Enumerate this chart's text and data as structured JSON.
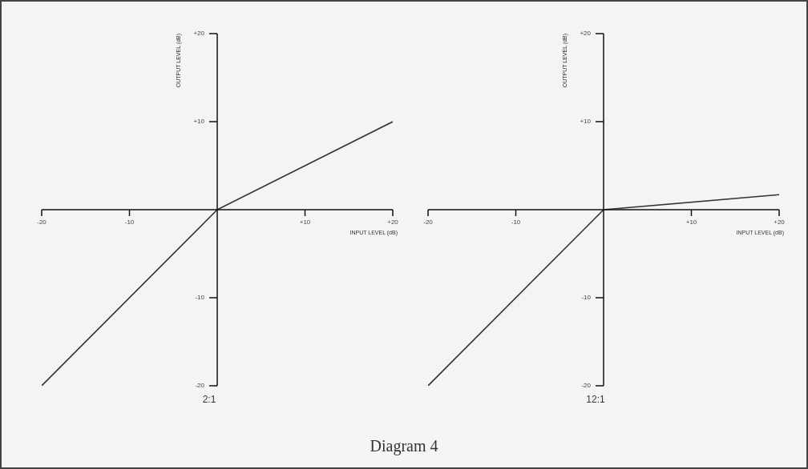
{
  "chart_data": [
    {
      "type": "line",
      "title": "2:1",
      "xlabel": "INPUT LEVEL (dB)",
      "ylabel": "OUTPUT LEVEL (dB)",
      "xlim": [
        -20,
        20
      ],
      "ylim": [
        -20,
        20
      ],
      "xticks": [
        {
          "value": -20,
          "label": "-20"
        },
        {
          "value": -10,
          "label": "-10"
        },
        {
          "value": 10,
          "label": "+10"
        },
        {
          "value": 20,
          "label": "+20"
        }
      ],
      "yticks": [
        {
          "value": -20,
          "label": "-20"
        },
        {
          "value": -10,
          "label": "-10"
        },
        {
          "value": 10,
          "label": "+10"
        },
        {
          "value": 20,
          "label": "+20"
        }
      ],
      "series": [
        {
          "color": "#333333",
          "x": [
            -20,
            0,
            20
          ],
          "values": [
            -20,
            0,
            10
          ]
        }
      ],
      "marker": "none",
      "line_style": "solid"
    },
    {
      "type": "line",
      "title": "12:1",
      "xlabel": "INPUT LEVEL (dB)",
      "ylabel": "OUTPUT LEVEL (dB)",
      "xlim": [
        -20,
        20
      ],
      "ylim": [
        -20,
        20
      ],
      "xticks": [
        {
          "value": -20,
          "label": "-20"
        },
        {
          "value": -10,
          "label": "-10"
        },
        {
          "value": 10,
          "label": "+10"
        },
        {
          "value": 20,
          "label": "+20"
        }
      ],
      "yticks": [
        {
          "value": -20,
          "label": "-20"
        },
        {
          "value": -10,
          "label": "-10"
        },
        {
          "value": 10,
          "label": "+10"
        },
        {
          "value": 20,
          "label": "+20"
        }
      ],
      "series": [
        {
          "color": "#333333",
          "x": [
            -20,
            0,
            20
          ],
          "values": [
            -20,
            0,
            1.7
          ]
        }
      ],
      "marker": "none",
      "line_style": "solid",
      "annotations": [
        "Diagram 4"
      ]
    }
  ]
}
